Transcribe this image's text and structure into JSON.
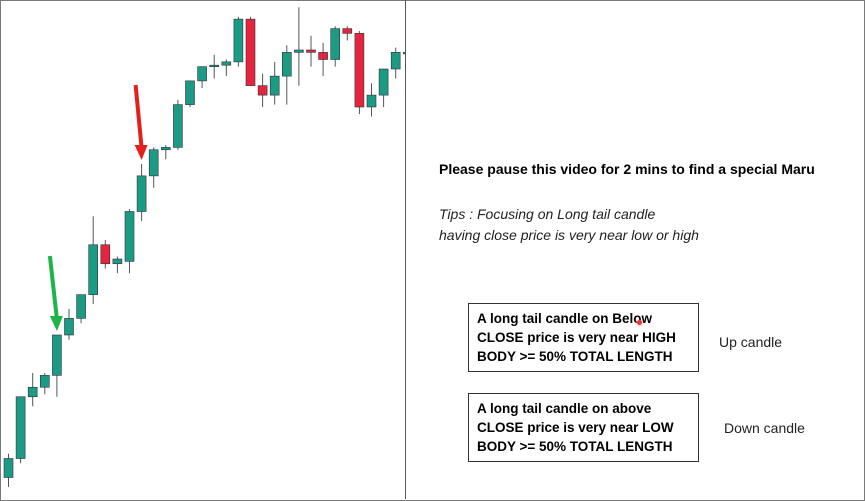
{
  "colors": {
    "up": "#1b9a85",
    "down": "#e5253f",
    "wick": "#555555",
    "green_arrow": "#1fb34a",
    "red_arrow": "#e3201b"
  },
  "chart_data": {
    "type": "candlestick",
    "title": "",
    "xlabel": "",
    "ylabel": "",
    "ylim": [
      0,
      100
    ],
    "candles": [
      {
        "o": 2.0,
        "h": 7.0,
        "l": 0.0,
        "c": 6.0
      },
      {
        "o": 6.0,
        "h": 19.0,
        "l": 5.0,
        "c": 19.0
      },
      {
        "o": 19.0,
        "h": 24.0,
        "l": 17.0,
        "c": 21.0
      },
      {
        "o": 21.0,
        "h": 24.0,
        "l": 19.5,
        "c": 23.5
      },
      {
        "o": 23.5,
        "h": 32.0,
        "l": 19.0,
        "c": 32.0
      },
      {
        "o": 32.0,
        "h": 37.5,
        "l": 31.0,
        "c": 35.5
      },
      {
        "o": 35.5,
        "h": 40.5,
        "l": 34.5,
        "c": 40.5
      },
      {
        "o": 40.5,
        "h": 57.0,
        "l": 38.5,
        "c": 51.0
      },
      {
        "o": 51.0,
        "h": 52.0,
        "l": 46.0,
        "c": 47.0
      },
      {
        "o": 47.0,
        "h": 48.5,
        "l": 45.0,
        "c": 48.0
      },
      {
        "o": 47.5,
        "h": 58.5,
        "l": 45.0,
        "c": 58.0
      },
      {
        "o": 58.0,
        "h": 68.0,
        "l": 56.0,
        "c": 65.5
      },
      {
        "o": 65.5,
        "h": 71.5,
        "l": 63.0,
        "c": 71.0
      },
      {
        "o": 71.0,
        "h": 72.0,
        "l": 69.0,
        "c": 71.5
      },
      {
        "o": 71.5,
        "h": 81.5,
        "l": 71.0,
        "c": 80.5
      },
      {
        "o": 80.5,
        "h": 85.5,
        "l": 80.0,
        "c": 85.5
      },
      {
        "o": 85.5,
        "h": 88.5,
        "l": 84.0,
        "c": 88.5
      },
      {
        "o": 88.5,
        "h": 91.0,
        "l": 86.0,
        "c": 88.8
      },
      {
        "o": 88.8,
        "h": 90.0,
        "l": 86.5,
        "c": 89.5
      },
      {
        "o": 89.5,
        "h": 99.0,
        "l": 88.5,
        "c": 98.5
      },
      {
        "o": 98.5,
        "h": 99.0,
        "l": 84.5,
        "c": 84.5
      },
      {
        "o": 84.5,
        "h": 87.0,
        "l": 80.0,
        "c": 82.5
      },
      {
        "o": 82.5,
        "h": 89.5,
        "l": 80.5,
        "c": 86.5
      },
      {
        "o": 86.5,
        "h": 93.0,
        "l": 80.5,
        "c": 91.5
      },
      {
        "o": 91.5,
        "h": 101.0,
        "l": 84.5,
        "c": 92.0
      },
      {
        "o": 92.0,
        "h": 95.0,
        "l": 88.5,
        "c": 91.5
      },
      {
        "o": 91.5,
        "h": 93.5,
        "l": 86.5,
        "c": 90.0
      },
      {
        "o": 90.0,
        "h": 97.0,
        "l": 88.5,
        "c": 96.5
      },
      {
        "o": 96.5,
        "h": 97.0,
        "l": 94.0,
        "c": 95.5
      },
      {
        "o": 95.5,
        "h": 96.0,
        "l": 78.5,
        "c": 80.0
      },
      {
        "o": 80.0,
        "h": 85.0,
        "l": 78.0,
        "c": 82.5
      },
      {
        "o": 82.5,
        "h": 87.0,
        "l": 80.0,
        "c": 88.0
      },
      {
        "o": 88.0,
        "h": 92.5,
        "l": 86.0,
        "c": 91.5
      },
      {
        "o": 91.5,
        "h": 95.0,
        "l": 89.0,
        "c": 91.5
      }
    ],
    "annotations": [
      {
        "type": "arrow",
        "color": "green",
        "direction": "down",
        "target_index": 4
      },
      {
        "type": "arrow",
        "color": "red",
        "direction": "down",
        "target_index": 11
      }
    ]
  },
  "content": {
    "headline": "Please pause this video for 2 mins to find a special Maru",
    "tips_lines": [
      "Tips : Focusing on Long tail candle",
      "having close price is very near low or high"
    ],
    "up_box_lines": [
      "A long tail candle on Below",
      "CLOSE price is very near HIGH",
      "BODY >= 50% TOTAL LENGTH"
    ],
    "up_label": "Up candle",
    "down_box_lines": [
      "A long tail candle on above",
      "CLOSE price is very near LOW",
      "BODY >= 50% TOTAL LENGTH"
    ],
    "down_label": "Down candle"
  }
}
